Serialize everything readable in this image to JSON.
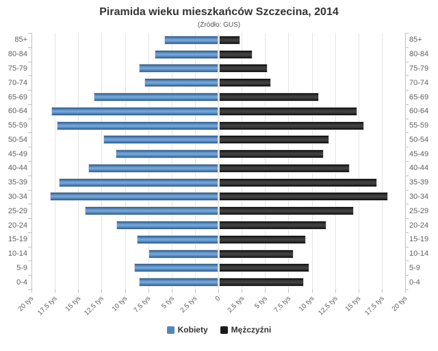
{
  "title": "Piramida wieku mieszkańców Szczecina, 2014",
  "subtitle": "(Źródło: GUS)",
  "colors": {
    "female": "#4572a7",
    "male": "#111111",
    "grid": "#e4e4e4",
    "axis": "#c0c0c0",
    "label": "#606060",
    "title": "#333333"
  },
  "legend": {
    "items": [
      {
        "label": "Kobiety",
        "color": "#5186bd"
      },
      {
        "label": "Mężczyźni",
        "color": "#1a1a1a"
      }
    ]
  },
  "chart_data": {
    "type": "bar",
    "variant": "population-pyramid",
    "title": "Piramida wieku mieszkańców Szczecina, 2014",
    "subtitle": "(Źródło: GUS)",
    "unit": "tys",
    "categories": [
      "85+",
      "80-84",
      "75-79",
      "70-74",
      "65-69",
      "60-64",
      "55-59",
      "50-54",
      "45-49",
      "40-44",
      "35-39",
      "30-34",
      "25-29",
      "20-24",
      "15-19",
      "10-14",
      "5-9",
      "0-4"
    ],
    "series": [
      {
        "name": "Kobiety",
        "side": "left",
        "color": "#4572a7",
        "values": [
          5.8,
          6.8,
          8.5,
          7.9,
          13.3,
          17.9,
          17.3,
          12.3,
          11.0,
          13.9,
          17.1,
          18.0,
          14.3,
          10.9,
          8.7,
          7.5,
          9.0,
          8.5
        ]
      },
      {
        "name": "Mężczyźni",
        "side": "right",
        "color": "#111111",
        "values": [
          2.3,
          3.6,
          5.2,
          5.6,
          10.7,
          14.8,
          15.5,
          11.8,
          11.2,
          14.0,
          16.9,
          18.1,
          14.4,
          11.5,
          9.3,
          8.0,
          9.7,
          9.1
        ]
      }
    ],
    "x_ticks": [
      "20 tys",
      "17,5 tys",
      "15 tys",
      "12,5 tys",
      "10 tys",
      "7,5 tys",
      "5 tys",
      "2,5 tys",
      "0",
      "2,5 tys",
      "5 tys",
      "7,5 tys",
      "10 tys",
      "12,5 tys",
      "15 tys",
      "17,5 tys",
      "20 tys"
    ],
    "xlim": [
      -20,
      20
    ],
    "tick_step": 2.5,
    "grid": true,
    "legend_position": "bottom"
  }
}
